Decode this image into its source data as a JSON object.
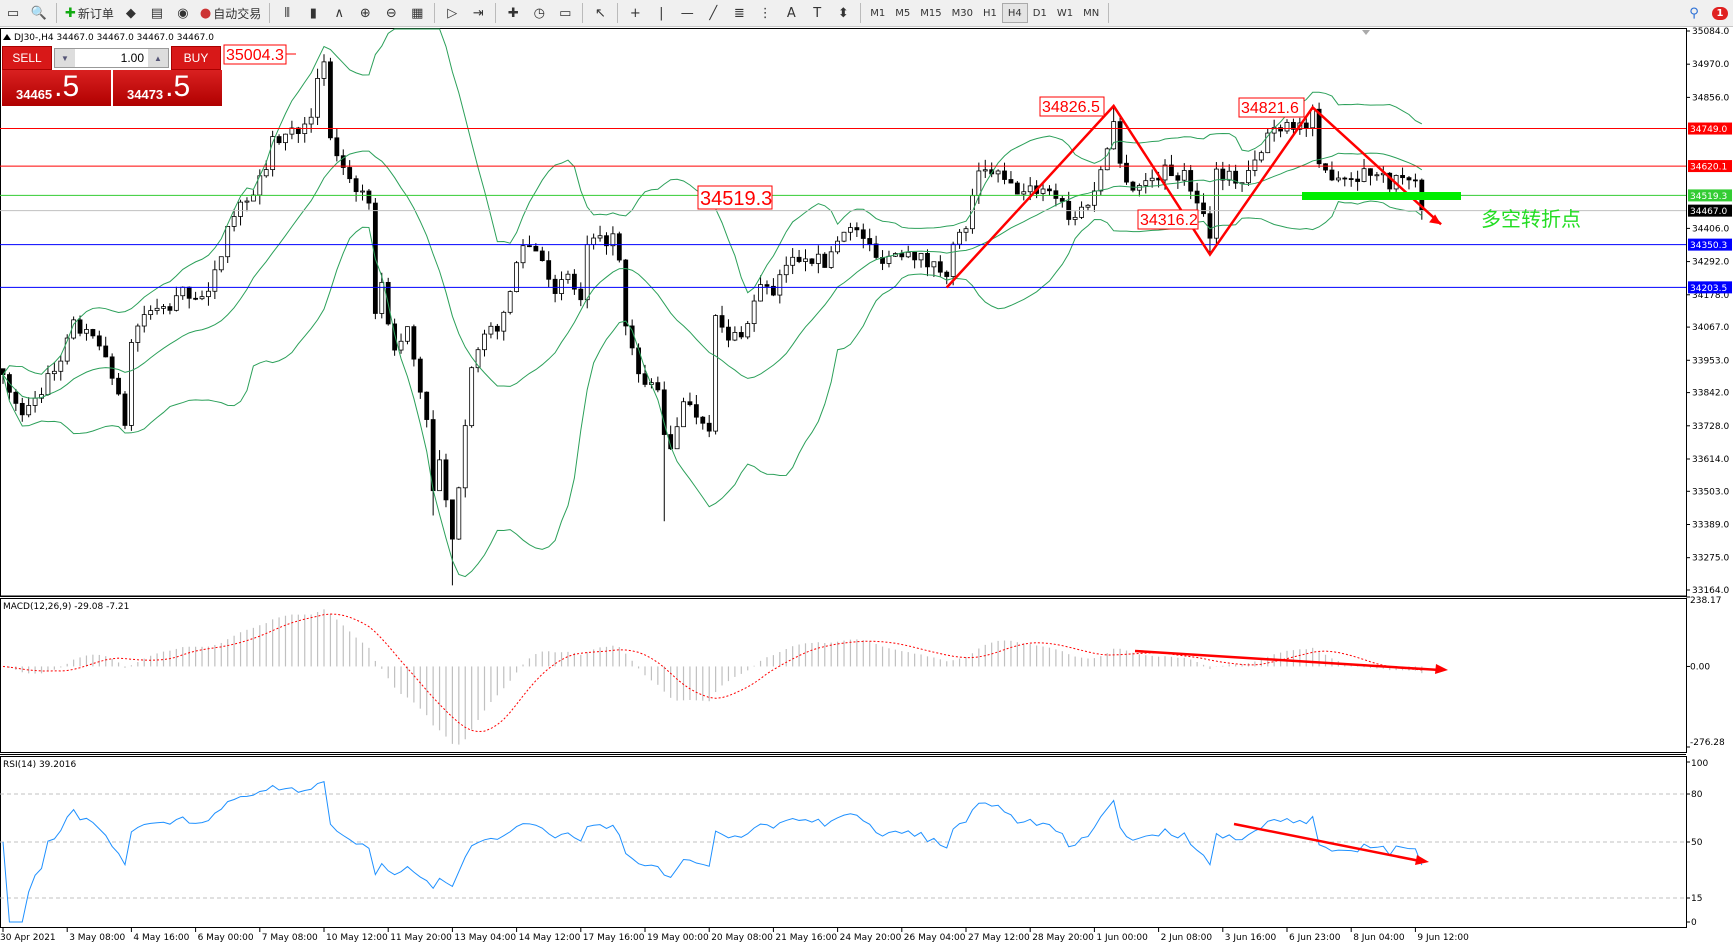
{
  "toolbar": {
    "new_order": "新订单",
    "auto_trading": "自动交易",
    "left_icons": [
      "window-icon",
      "print-preview-icon"
    ],
    "mid_icons": [
      "metaeditor-icon",
      "navigator-icon",
      "signal-icon"
    ],
    "chart_icons": [
      "bar-chart-icon",
      "candlestick-icon",
      "line-chart-icon",
      "zoom-in-icon",
      "zoom-out-icon",
      "tile-windows-icon",
      "auto-scroll-icon",
      "chart-shift-icon",
      "indicators-icon",
      "periods-icon",
      "templates-icon",
      "cursor-icon",
      "crosshair-icon",
      "vertical-line-icon",
      "horizontal-line-icon",
      "trendline-icon",
      "fibonacci-icon",
      "fibonacci-fan-icon",
      "text-icon",
      "text-label-icon",
      "arrows-icon"
    ],
    "timeframes": [
      "M1",
      "M5",
      "M15",
      "M30",
      "H1",
      "H4",
      "D1",
      "W1",
      "MN"
    ],
    "active_timeframe": "H4",
    "notification_count": "1"
  },
  "chart_header": "DJ30-,H4  34467.0 34467.0 34467.0 34467.0",
  "trade_panel": {
    "sell_label": "SELL",
    "buy_label": "BUY",
    "lot": "1.00",
    "sell_price_main": "34465",
    "sell_price_big": ".5",
    "buy_price_main": "34473",
    "buy_price_big": ".5"
  },
  "colors": {
    "bull": "#ffffff",
    "bear": "#000000",
    "bands": "#2ca05a",
    "annotation": "#ff0000",
    "turn_bar": "#00ee00",
    "macd_hist": "#c0c0c0",
    "macd_signal": "#ff0000",
    "rsi": "#1e90ff"
  },
  "price_axis": {
    "ticks": [
      "35084.0",
      "34970.0",
      "34856.0",
      "34406.0",
      "34292.0",
      "34178.0",
      "34067.0",
      "33953.0",
      "33842.0",
      "33728.0",
      "33614.0",
      "33503.0",
      "33389.0",
      "33275.0",
      "33164.0"
    ],
    "markers": [
      {
        "label": "34749.0",
        "value": 34749.0,
        "color": "#ff0000",
        "line": "#ff0000"
      },
      {
        "label": "34620.1",
        "value": 34620.1,
        "color": "#ff0000",
        "line": "#ff0000"
      },
      {
        "label": "34519.3",
        "value": 34519.3,
        "color": "#33cc33",
        "line": "#33cc33"
      },
      {
        "label": "34467.0",
        "value": 34467.0,
        "color": "#000000",
        "line": "#c0c0c0"
      },
      {
        "label": "34350.3",
        "value": 34350.3,
        "color": "#0000ff",
        "line": "#0000ff"
      },
      {
        "label": "34203.5",
        "value": 34203.5,
        "color": "#0000ff",
        "line": "#0000ff"
      }
    ]
  },
  "annotations": {
    "high_label": "35004.3",
    "level_label": "34519.3",
    "peak1": {
      "label": "34826.5",
      "price": 34826.5
    },
    "trough": {
      "label": "34316.2",
      "price": 34316.2
    },
    "peak2": {
      "label": "34821.6",
      "price": 34821.6
    },
    "turn_text": "多空转折点"
  },
  "macd": {
    "label": "MACD(12,26,9) -29.08 -7.21",
    "ticks": [
      "238.17",
      "0.00",
      "-276.28"
    ]
  },
  "rsi": {
    "label": "RSI(14) 39.2016",
    "ticks": [
      "100",
      "80",
      "50",
      "15",
      "0"
    ]
  },
  "time_axis": [
    "30 Apr 2021",
    "3 May 08:00",
    "4 May 16:00",
    "6 May 00:00",
    "7 May 08:00",
    "10 May 12:00",
    "11 May 20:00",
    "13 May 04:00",
    "14 May 12:00",
    "17 May 16:00",
    "19 May 00:00",
    "20 May 08:00",
    "21 May 16:00",
    "24 May 20:00",
    "26 May 04:00",
    "27 May 12:00",
    "28 May 20:00",
    "1 Jun 00:00",
    "2 Jun 08:00",
    "3 Jun 16:00",
    "6 Jun 23:00",
    "8 Jun 04:00",
    "9 Jun 12:00"
  ],
  "chart_data": {
    "type": "candlestick",
    "symbol": "DJ30-",
    "timeframe": "H4",
    "ylim": [
      33164.0,
      35084.0
    ],
    "close_path": [
      [
        0,
        33904
      ],
      [
        3,
        33753
      ],
      [
        5,
        33829
      ],
      [
        9,
        33943
      ],
      [
        11,
        34075
      ],
      [
        16,
        33980
      ],
      [
        19,
        33734
      ],
      [
        20,
        34018
      ],
      [
        22,
        34112
      ],
      [
        26,
        34132
      ],
      [
        28,
        34188
      ],
      [
        32,
        34169
      ],
      [
        34,
        34320
      ],
      [
        35,
        34434
      ],
      [
        40,
        34566
      ],
      [
        42,
        34698
      ],
      [
        46,
        34755
      ],
      [
        48,
        34811
      ],
      [
        50,
        34982
      ],
      [
        51,
        34698
      ],
      [
        54,
        34585
      ],
      [
        57,
        34472
      ],
      [
        58,
        34132
      ],
      [
        59,
        34207
      ],
      [
        61,
        33980
      ],
      [
        63,
        34056
      ],
      [
        66,
        33753
      ],
      [
        67,
        33489
      ],
      [
        68,
        33602
      ],
      [
        70,
        33319
      ],
      [
        72,
        33753
      ],
      [
        73,
        33943
      ],
      [
        76,
        34056
      ],
      [
        78,
        34094
      ],
      [
        80,
        34283
      ],
      [
        81,
        34358
      ],
      [
        84,
        34320
      ],
      [
        86,
        34169
      ],
      [
        88,
        34245
      ],
      [
        90,
        34150
      ],
      [
        91,
        34339
      ],
      [
        93,
        34358
      ],
      [
        95,
        34377
      ],
      [
        96,
        34283
      ],
      [
        97,
        34056
      ],
      [
        99,
        33905
      ],
      [
        100,
        33867
      ],
      [
        102,
        33867
      ],
      [
        103,
        33678
      ],
      [
        104,
        33640
      ],
      [
        106,
        33829
      ],
      [
        107,
        33791
      ],
      [
        109,
        33753
      ],
      [
        110,
        33734
      ],
      [
        111,
        34094
      ],
      [
        113,
        34018
      ],
      [
        116,
        34075
      ],
      [
        118,
        34226
      ],
      [
        120,
        34169
      ],
      [
        122,
        34283
      ],
      [
        125,
        34320
      ],
      [
        128,
        34283
      ],
      [
        131,
        34415
      ],
      [
        134,
        34377
      ],
      [
        136,
        34301
      ],
      [
        139,
        34320
      ],
      [
        141,
        34339
      ],
      [
        144,
        34283
      ],
      [
        147,
        34264
      ],
      [
        148,
        34339
      ],
      [
        150,
        34415
      ],
      [
        152,
        34585
      ],
      [
        154,
        34604
      ],
      [
        157,
        34547
      ],
      [
        159,
        34528
      ],
      [
        162,
        34547
      ],
      [
        165,
        34509
      ],
      [
        166,
        34434
      ],
      [
        168,
        34472
      ],
      [
        170,
        34528
      ],
      [
        172,
        34698
      ],
      [
        173,
        34774
      ],
      [
        174,
        34623
      ],
      [
        176,
        34547
      ],
      [
        178,
        34566
      ],
      [
        181,
        34604
      ],
      [
        184,
        34585
      ],
      [
        186,
        34509
      ],
      [
        188,
        34396
      ],
      [
        189,
        34604
      ],
      [
        191,
        34585
      ],
      [
        193,
        34566
      ],
      [
        196,
        34660
      ],
      [
        197,
        34736
      ],
      [
        200,
        34774
      ],
      [
        203,
        34755
      ],
      [
        204,
        34793
      ],
      [
        205,
        34604
      ],
      [
        208,
        34592
      ],
      [
        210,
        34585
      ],
      [
        213,
        34604
      ],
      [
        216,
        34566
      ],
      [
        218,
        34585
      ],
      [
        220,
        34547
      ],
      [
        221,
        34467
      ]
    ],
    "extremes": [
      [
        50,
        35004.3
      ],
      [
        70,
        33180
      ],
      [
        173,
        34826.5
      ],
      [
        188,
        34316.2
      ],
      [
        204,
        34821.6
      ],
      [
        67,
        33420
      ],
      [
        103,
        33400
      ]
    ],
    "indicators": [
      "Bollinger Bands(20,2)",
      "MACD(12,26,9)",
      "RSI(14)"
    ]
  }
}
